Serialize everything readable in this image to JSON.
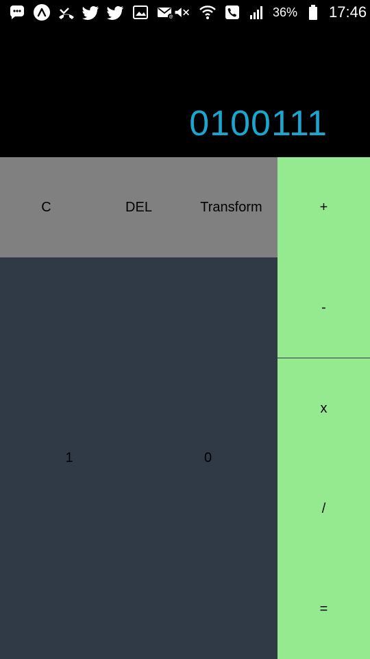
{
  "status_bar": {
    "left_icons": [
      "message-icon",
      "app-launcher-icon",
      "missed-call-icon",
      "twitter-icon",
      "twitter-icon",
      "gallery-icon",
      "mail-icon"
    ],
    "right_icons": [
      "mute-icon",
      "wifi-icon",
      "phone-call-icon",
      "signal-icon",
      "battery-icon"
    ],
    "battery_percent": "36%",
    "time": "17:46"
  },
  "display": {
    "value": "0100111"
  },
  "keys": {
    "clear": "C",
    "delete": "DEL",
    "transform": "Transform",
    "plus": "+",
    "minus": "-",
    "multiply": "x",
    "divide": "/",
    "equals": "=",
    "one": "1",
    "zero": "0"
  },
  "colors": {
    "display_text": "#1aa6cf",
    "top_row_bg": "#808080",
    "digits_bg": "#2f3a46",
    "ops_bg": "#95ea8f"
  }
}
